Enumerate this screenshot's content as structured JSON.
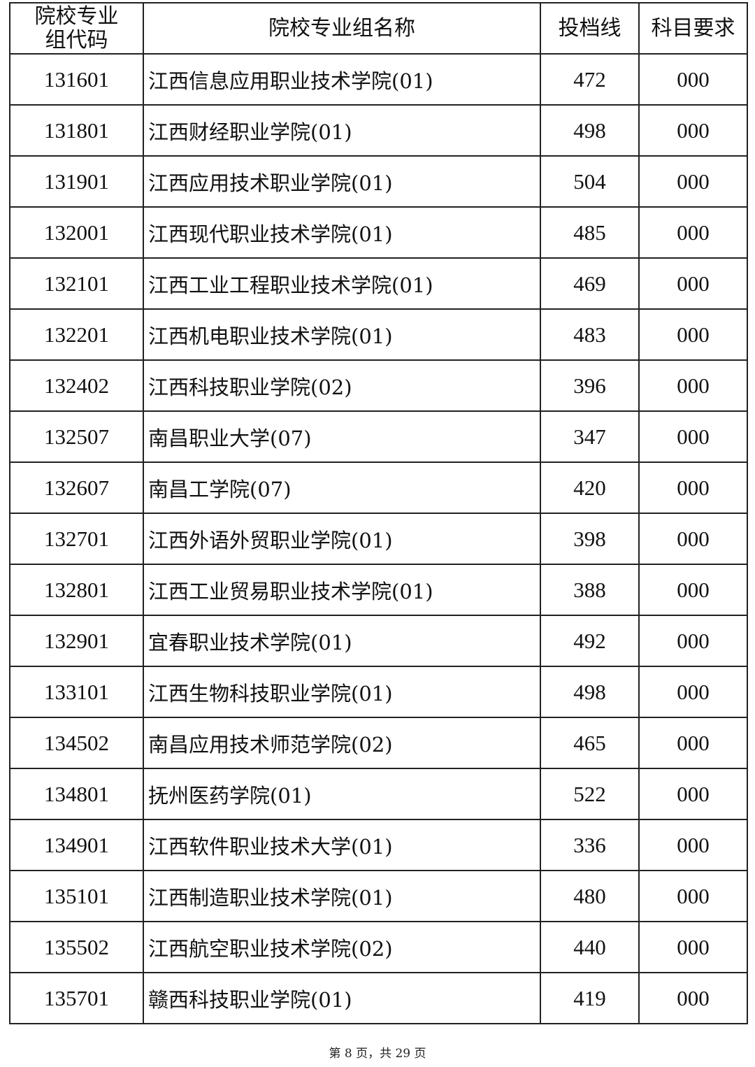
{
  "table": {
    "headers": {
      "code": "院校专业组代码",
      "name": "院校专业组名称",
      "score": "投档线",
      "subject": "科目要求"
    },
    "rows": [
      {
        "code": "131601",
        "name": "江西信息应用职业技术学院(01)",
        "score": "472",
        "subject": "000"
      },
      {
        "code": "131801",
        "name": "江西财经职业学院(01)",
        "score": "498",
        "subject": "000"
      },
      {
        "code": "131901",
        "name": "江西应用技术职业学院(01)",
        "score": "504",
        "subject": "000"
      },
      {
        "code": "132001",
        "name": "江西现代职业技术学院(01)",
        "score": "485",
        "subject": "000"
      },
      {
        "code": "132101",
        "name": "江西工业工程职业技术学院(01)",
        "score": "469",
        "subject": "000"
      },
      {
        "code": "132201",
        "name": "江西机电职业技术学院(01)",
        "score": "483",
        "subject": "000"
      },
      {
        "code": "132402",
        "name": "江西科技职业学院(02)",
        "score": "396",
        "subject": "000"
      },
      {
        "code": "132507",
        "name": "南昌职业大学(07)",
        "score": "347",
        "subject": "000"
      },
      {
        "code": "132607",
        "name": "南昌工学院(07)",
        "score": "420",
        "subject": "000"
      },
      {
        "code": "132701",
        "name": "江西外语外贸职业学院(01)",
        "score": "398",
        "subject": "000"
      },
      {
        "code": "132801",
        "name": "江西工业贸易职业技术学院(01)",
        "score": "388",
        "subject": "000"
      },
      {
        "code": "132901",
        "name": "宜春职业技术学院(01)",
        "score": "492",
        "subject": "000"
      },
      {
        "code": "133101",
        "name": "江西生物科技职业学院(01)",
        "score": "498",
        "subject": "000"
      },
      {
        "code": "134502",
        "name": "南昌应用技术师范学院(02)",
        "score": "465",
        "subject": "000"
      },
      {
        "code": "134801",
        "name": "抚州医药学院(01)",
        "score": "522",
        "subject": "000"
      },
      {
        "code": "134901",
        "name": "江西软件职业技术大学(01)",
        "score": "336",
        "subject": "000"
      },
      {
        "code": "135101",
        "name": "江西制造职业技术学院(01)",
        "score": "480",
        "subject": "000"
      },
      {
        "code": "135502",
        "name": "江西航空职业技术学院(02)",
        "score": "440",
        "subject": "000"
      },
      {
        "code": "135701",
        "name": "赣西科技职业学院(01)",
        "score": "419",
        "subject": "000"
      }
    ]
  },
  "footer": {
    "page_info": "第 8 页，共 29 页"
  }
}
